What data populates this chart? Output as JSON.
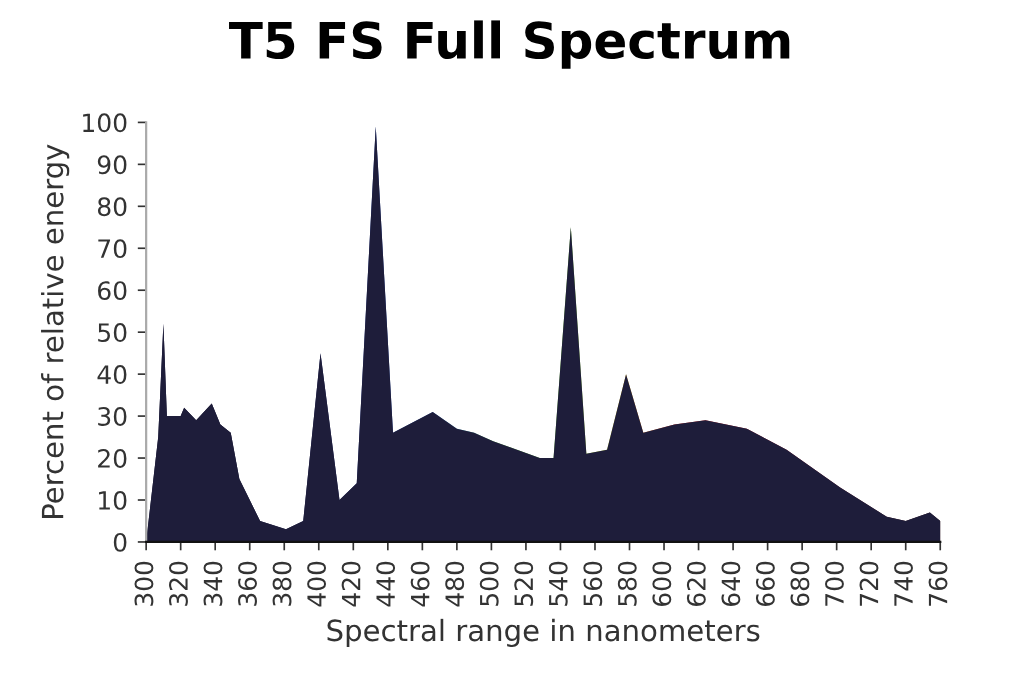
{
  "chart_data": {
    "type": "area",
    "title": "T5 FS Full Spectrum",
    "xlabel": "Spectral range in nanometers",
    "ylabel": "Percent of relative energy",
    "xlim": [
      300,
      760
    ],
    "ylim": [
      0,
      100
    ],
    "xticks": [
      300,
      320,
      340,
      360,
      380,
      400,
      420,
      440,
      460,
      480,
      500,
      520,
      540,
      560,
      580,
      600,
      620,
      640,
      660,
      680,
      700,
      720,
      740,
      760
    ],
    "yticks": [
      0,
      10,
      20,
      30,
      40,
      50,
      60,
      70,
      80,
      90,
      100
    ],
    "grid": false,
    "legend": false,
    "series": [
      {
        "x": [
          300,
          307,
          310,
          312,
          320,
          322,
          329,
          338,
          343,
          349,
          354,
          366,
          381,
          391,
          401,
          412,
          422,
          433,
          443,
          466,
          480,
          490,
          501,
          528,
          536,
          546,
          555,
          567,
          578,
          588,
          606,
          624,
          648,
          671,
          702,
          729,
          740,
          754,
          760
        ],
        "values": [
          0,
          25,
          52,
          30,
          30,
          32,
          29,
          33,
          28,
          26,
          15,
          5,
          3,
          5,
          45,
          10,
          14,
          99,
          26,
          31,
          27,
          26,
          24,
          20,
          20,
          75,
          21,
          22,
          40,
          26,
          28,
          29,
          27,
          22,
          13,
          6,
          5,
          7,
          5
        ],
        "colors": [
          "#1e1d3a",
          "#1e1d3a",
          "#1e1d3a",
          "#1e1d3a",
          "#1e1d3a",
          "#1e1d3a",
          "#1e1d3a",
          "#1e1d3a",
          "#1e1d3a",
          "#1e1d3a",
          "#1e1d3a",
          "#1f1f40",
          "#21224a",
          "#232552",
          "#262b5e",
          "#28306a",
          "#2a3a80",
          "#2c4797",
          "#30509f",
          "#3a62ae",
          "#5fb8d8",
          "#62b09a",
          "#5aaa48",
          "#5aaa38",
          "#62ad3a",
          "#70b43a",
          "#90bc3a",
          "#c8d43a",
          "#e0b030",
          "#e07a2a",
          "#d43228",
          "#c82828",
          "#a82230",
          "#922030",
          "#6a1a26",
          "#451520",
          "#3a121a",
          "#30101a",
          "#2a0e16"
        ]
      }
    ]
  }
}
